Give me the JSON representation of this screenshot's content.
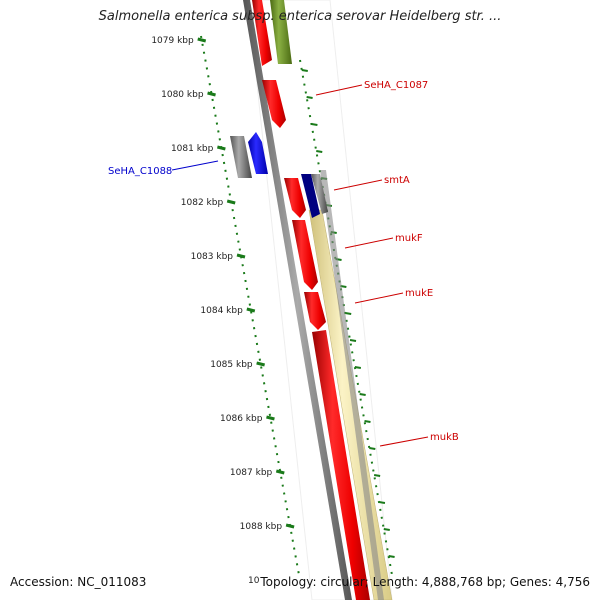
{
  "title": "Salmonella enterica subsp. enterica serovar Heidelberg str. ...",
  "footer": {
    "accession": "Accession: NC_011083",
    "topology": "Topology: circular; Length: 4,888,768 bp; Genes: 4,756"
  },
  "ruler_ticks": [
    "1079 kbp",
    "1080 kbp",
    "1081 kbp",
    "1082 kbp",
    "1083 kbp",
    "1084 kbp",
    "1085 kbp",
    "1086 kbp",
    "1087 kbp",
    "1088 kbp"
  ],
  "ruler_clipped_label": "10",
  "gene_labels": [
    {
      "text": "SeHA_C1087",
      "strand": "forward"
    },
    {
      "text": "smtA",
      "strand": "forward"
    },
    {
      "text": "mukF",
      "strand": "forward"
    },
    {
      "text": "mukE",
      "strand": "forward"
    },
    {
      "text": "mukB",
      "strand": "forward"
    },
    {
      "text": "SeHA_C1088",
      "strand": "reverse"
    }
  ],
  "colors": {
    "forward_label": "#cc0000",
    "reverse_label": "#0000cc",
    "cds_red": "#ee0000",
    "cds_blue": "#0000ee",
    "cds_gray": "#666666",
    "cds_olive": "#6b8e23",
    "cds_navy": "#000080",
    "operon_band": "#f2e6a0",
    "ruler": "#1a7a1a",
    "backbone": "#777777"
  }
}
